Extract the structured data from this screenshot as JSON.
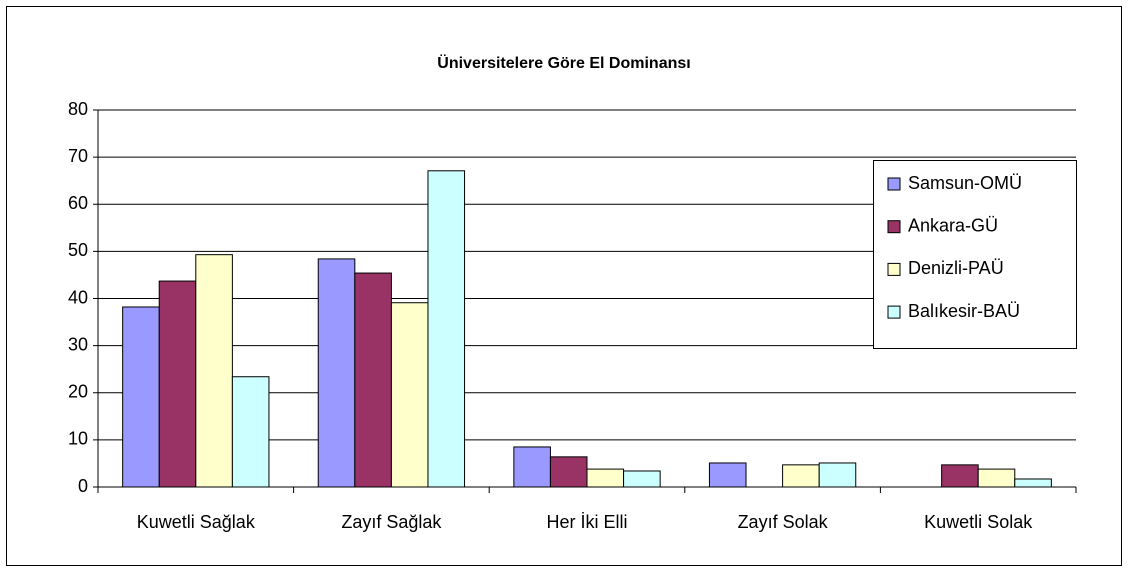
{
  "chart_data": {
    "type": "bar",
    "title": "Üniversitelere Göre El Dominansı",
    "categories": [
      "Kuwetli Sağlak",
      "Zayıf Sağlak",
      "Her İki Elli",
      "Zayıf Solak",
      "Kuwetli Solak"
    ],
    "series": [
      {
        "name": "Samsun-OMÜ",
        "color": "#9999ff",
        "values": [
          38.2,
          48.4,
          8.5,
          5.1,
          0
        ]
      },
      {
        "name": "Ankara-GÜ",
        "color": "#993366",
        "values": [
          43.7,
          45.4,
          6.4,
          0,
          4.7
        ]
      },
      {
        "name": "Denizli-PAÜ",
        "color": "#ffffcc",
        "values": [
          49.3,
          39.1,
          3.8,
          4.7,
          3.8
        ]
      },
      {
        "name": "Balıkesir-BAÜ",
        "color": "#ccffff",
        "values": [
          23.4,
          67.1,
          3.4,
          5.1,
          1.7
        ]
      }
    ],
    "ylim": [
      0,
      80
    ],
    "yticks": [
      0,
      10,
      20,
      30,
      40,
      50,
      60,
      70,
      80
    ],
    "grid": true,
    "legend": "right"
  }
}
